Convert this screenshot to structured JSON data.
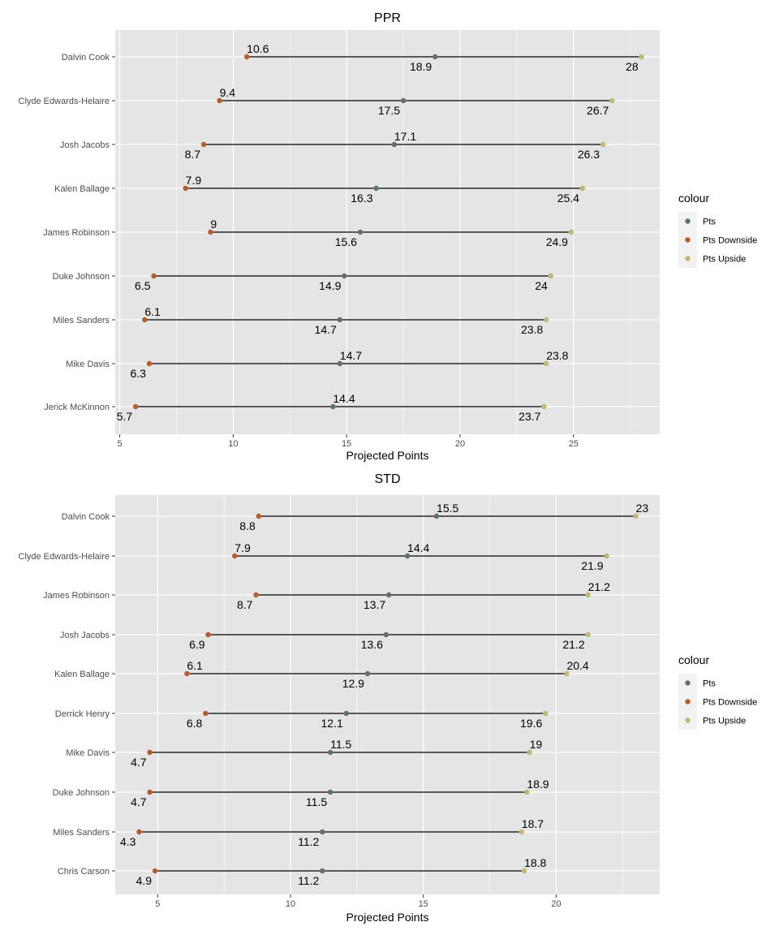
{
  "colors": {
    "panel_bg": "#e5e5e5",
    "grid": "#ffffff",
    "segment": "#000000",
    "pts": "#5e7366",
    "pts_downside": "#b85d2a",
    "pts_upside": "#bfba73"
  },
  "chart_data": [
    {
      "type": "dumbbell",
      "title": "PPR",
      "xlabel": "Projected Points",
      "xlim": [
        4.8,
        28.8
      ],
      "x_ticks": [
        5,
        10,
        15,
        20,
        25
      ],
      "legend": {
        "title": "colour",
        "placement": "right",
        "entries": [
          {
            "label": "Pts",
            "key": "pts"
          },
          {
            "label": "Pts Downside",
            "key": "pts_downside"
          },
          {
            "label": "Pts Upside",
            "key": "pts_upside"
          }
        ]
      },
      "players": [
        {
          "name": "Dalvin Cook",
          "downside": 10.6,
          "pts": 18.9,
          "upside": 28
        },
        {
          "name": "Clyde Edwards-Helaire",
          "downside": 9.4,
          "pts": 17.5,
          "upside": 26.7
        },
        {
          "name": "Josh Jacobs",
          "downside": 8.7,
          "pts": 17.1,
          "upside": 26.3
        },
        {
          "name": "Kalen Ballage",
          "downside": 7.9,
          "pts": 16.3,
          "upside": 25.4
        },
        {
          "name": "James Robinson",
          "downside": 9,
          "pts": 15.6,
          "upside": 24.9
        },
        {
          "name": "Duke Johnson",
          "downside": 6.5,
          "pts": 14.9,
          "upside": 24
        },
        {
          "name": "Miles Sanders",
          "downside": 6.1,
          "pts": 14.7,
          "upside": 23.8
        },
        {
          "name": "Mike Davis",
          "downside": 6.3,
          "pts": 14.7,
          "upside": 23.8
        },
        {
          "name": "Jerick McKinnon",
          "downside": 5.7,
          "pts": 14.4,
          "upside": 23.7
        }
      ],
      "labels": [
        {
          "d": "above",
          "p": "below",
          "u": "below"
        },
        {
          "d": "above",
          "p": "below",
          "u": "below"
        },
        {
          "d": "below",
          "p": "above",
          "u": "below"
        },
        {
          "d": "above",
          "p": "below",
          "u": "below"
        },
        {
          "d": "above",
          "p": "below",
          "u": "below"
        },
        {
          "d": "below",
          "p": "below",
          "u": "below"
        },
        {
          "d": "above",
          "p": "below",
          "u": "below"
        },
        {
          "d": "below",
          "p": "above",
          "u": "above"
        },
        {
          "d": "below",
          "p": "above",
          "u": "below"
        }
      ]
    },
    {
      "type": "dumbbell",
      "title": "STD",
      "xlabel": "Projected Points",
      "xlim": [
        3.4,
        23.9
      ],
      "x_ticks": [
        5,
        10,
        15,
        20
      ],
      "legend": {
        "title": "colour",
        "placement": "right",
        "entries": [
          {
            "label": "Pts",
            "key": "pts"
          },
          {
            "label": "Pts Downside",
            "key": "pts_downside"
          },
          {
            "label": "Pts Upside",
            "key": "pts_upside"
          }
        ]
      },
      "players": [
        {
          "name": "Dalvin Cook",
          "downside": 8.8,
          "pts": 15.5,
          "upside": 23
        },
        {
          "name": "Clyde Edwards-Helaire",
          "downside": 7.9,
          "pts": 14.4,
          "upside": 21.9
        },
        {
          "name": "James Robinson",
          "downside": 8.7,
          "pts": 13.7,
          "upside": 21.2
        },
        {
          "name": "Josh Jacobs",
          "downside": 6.9,
          "pts": 13.6,
          "upside": 21.2
        },
        {
          "name": "Kalen Ballage",
          "downside": 6.1,
          "pts": 12.9,
          "upside": 20.4
        },
        {
          "name": "Derrick Henry",
          "downside": 6.8,
          "pts": 12.1,
          "upside": 19.6
        },
        {
          "name": "Mike Davis",
          "downside": 4.7,
          "pts": 11.5,
          "upside": 19
        },
        {
          "name": "Duke Johnson",
          "downside": 4.7,
          "pts": 11.5,
          "upside": 18.9
        },
        {
          "name": "Miles Sanders",
          "downside": 4.3,
          "pts": 11.2,
          "upside": 18.7
        },
        {
          "name": "Chris Carson",
          "downside": 4.9,
          "pts": 11.2,
          "upside": 18.8
        }
      ],
      "labels": [
        {
          "d": "below",
          "p": "above",
          "u": "above"
        },
        {
          "d": "above",
          "p": "above",
          "u": "below"
        },
        {
          "d": "below",
          "p": "below",
          "u": "above"
        },
        {
          "d": "below",
          "p": "below",
          "u": "below"
        },
        {
          "d": "above",
          "p": "below",
          "u": "above"
        },
        {
          "d": "below",
          "p": "below",
          "u": "below"
        },
        {
          "d": "below",
          "p": "above",
          "u": "above"
        },
        {
          "d": "below",
          "p": "below",
          "u": "above"
        },
        {
          "d": "below",
          "p": "below",
          "u": "above"
        },
        {
          "d": "below",
          "p": "below",
          "u": "above"
        }
      ]
    }
  ]
}
